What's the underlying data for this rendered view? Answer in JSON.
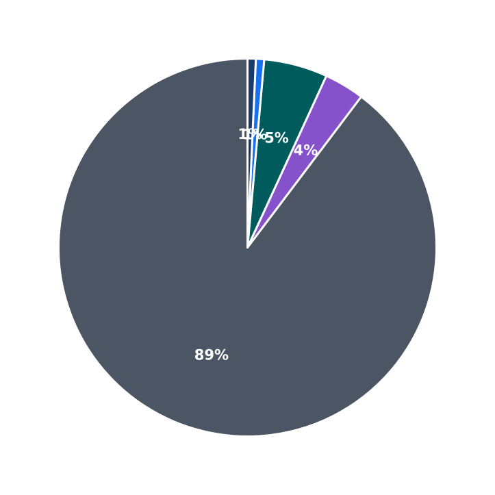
{
  "chart_data": {
    "type": "pie",
    "title": "",
    "start_angle_deg": 90,
    "direction": "counterclockwise",
    "slices": [
      {
        "value": 89,
        "label": "89%",
        "color": "#4b5563"
      },
      {
        "value": 3.4,
        "label": "4%",
        "color": "#8652cc"
      },
      {
        "value": 5.4,
        "label": "5%",
        "color": "#005c5c"
      },
      {
        "value": 0.7,
        "label": "1%",
        "color": "#1670f0"
      },
      {
        "value": 0.7,
        "label": "1%",
        "color": "#1a3a6b"
      }
    ]
  }
}
